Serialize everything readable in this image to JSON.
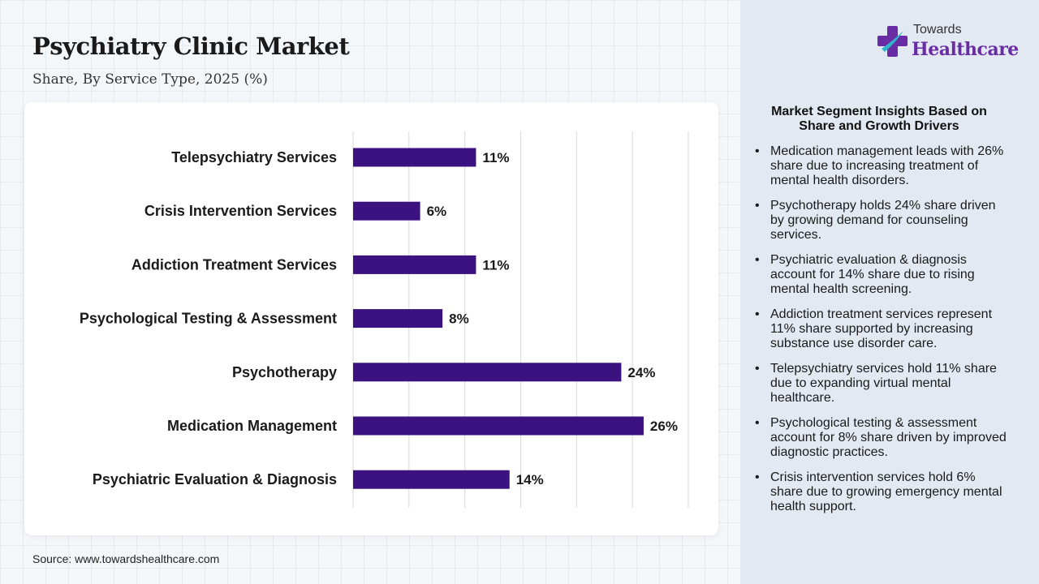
{
  "title": "Psychiatry Clinic Market",
  "subtitle": "Share, By Service Type, 2025 (%)",
  "source": "Source: www.towardshealthcare.com",
  "logo": {
    "line1": "Towards",
    "line2": "Healthcare",
    "mark_color": "#6a2ca5",
    "accent_color": "#2fb5c9"
  },
  "chart_data": {
    "type": "bar",
    "orientation": "horizontal",
    "categories": [
      "Telepsychiatry Services",
      "Crisis Intervention Services",
      "Addiction Treatment Services",
      "Psychological Testing & Assessment",
      "Psychotherapy",
      "Medication Management",
      "Psychiatric Evaluation & Diagnosis"
    ],
    "values": [
      11,
      6,
      11,
      8,
      24,
      26,
      14
    ],
    "value_labels": [
      "11%",
      "6%",
      "11%",
      "8%",
      "24%",
      "26%",
      "14%"
    ],
    "xlim": [
      0,
      30
    ],
    "grid": true,
    "bar_color": "#3b1280"
  },
  "insights": {
    "title": "Market Segment Insights Based on Share and Growth Drivers",
    "items": [
      "Medication management leads with 26% share due to increasing treatment of mental health disorders.",
      "Psychotherapy holds 24% share driven by growing demand for counseling services.",
      "Psychiatric evaluation & diagnosis account for 14% share due to rising mental health screening.",
      "Addiction treatment services represent 11% share supported by increasing substance use disorder care.",
      "Telepsychiatry services hold 11% share due to expanding virtual mental healthcare.",
      "Psychological testing & assessment account for 8% share driven by improved diagnostic practices.",
      "Crisis intervention services hold 6% share due to growing emergency mental health support."
    ]
  }
}
